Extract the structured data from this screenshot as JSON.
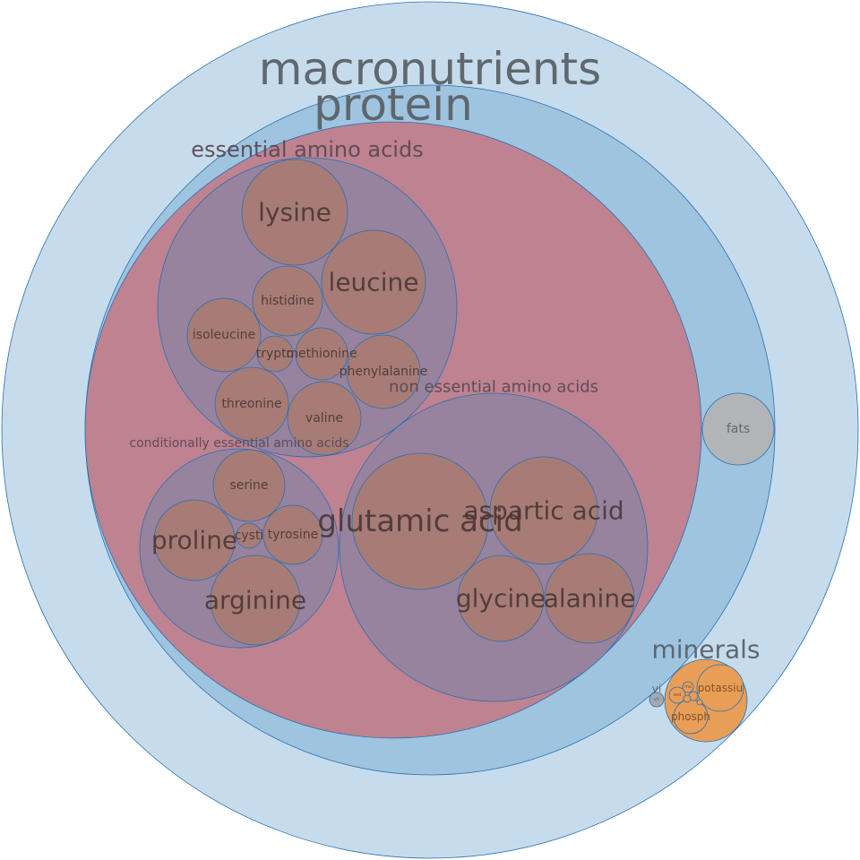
{
  "colors": {
    "macronutrients": "#c6dcec",
    "protein": "#9ec4e0",
    "amino_acids": "#bf8290",
    "amino_group": "#97839e",
    "amino_leaf": "#a77c76",
    "fats": "#b1b5b8",
    "minerals": "#e99e58",
    "mineral_leaf": "#e99e58",
    "vitamins": "#a2abb2",
    "stroke": "#2a6fb0",
    "label_dark": "#5b6167",
    "label_amino": "#4a3636"
  },
  "labels": {
    "macronutrients": "macronutrients",
    "protein": "protein",
    "essential": "essential amino acids",
    "non_essential": "non essential amino acids",
    "conditionally": "conditionally essential amino acids",
    "fats": "fats",
    "minerals": "minerals",
    "vitamins": "vi",
    "vitamins_small": "vit"
  },
  "essential": [
    {
      "id": "lysine",
      "label": "lysine"
    },
    {
      "id": "leucine",
      "label": "leucine"
    },
    {
      "id": "histidine",
      "label": "histidine"
    },
    {
      "id": "isoleucine",
      "label": "isoleucine"
    },
    {
      "id": "tryptophan",
      "label": "trypto"
    },
    {
      "id": "methionine",
      "label": "methionine"
    },
    {
      "id": "phenylalanine",
      "label": "phenylalanine"
    },
    {
      "id": "threonine",
      "label": "threonine"
    },
    {
      "id": "valine",
      "label": "valine"
    }
  ],
  "conditional": [
    {
      "id": "serine",
      "label": "serine"
    },
    {
      "id": "proline",
      "label": "proline"
    },
    {
      "id": "cystine",
      "label": "cysti"
    },
    {
      "id": "tyrosine",
      "label": "tyrosine"
    },
    {
      "id": "arginine",
      "label": "arginine"
    }
  ],
  "non_essential": [
    {
      "id": "glutamic-acid",
      "label": "glutamic acid"
    },
    {
      "id": "aspartic-acid",
      "label": "aspartic acid"
    },
    {
      "id": "glycine",
      "label": "glycine"
    },
    {
      "id": "alanine",
      "label": "alanine"
    }
  ],
  "minerals": [
    {
      "id": "potassium",
      "label": "potassiu"
    },
    {
      "id": "phosphorus",
      "label": "phosph"
    },
    {
      "id": "sodium",
      "label": "sod"
    },
    {
      "id": "magnesium",
      "label": "ma"
    },
    {
      "id": "calcium",
      "label": ""
    },
    {
      "id": "iron",
      "label": ""
    },
    {
      "id": "zinc",
      "label": ""
    }
  ]
}
